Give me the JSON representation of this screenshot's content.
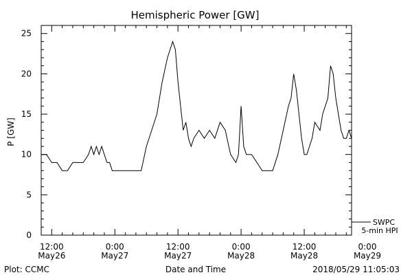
{
  "chart_data": {
    "type": "line",
    "title": "Hemispheric Power [GW]",
    "xlabel": "Date and Time",
    "ylabel": "P [GW]",
    "ylim": [
      0,
      26
    ],
    "xlim_hours": [
      -2,
      57
    ],
    "x_ticks": [
      {
        "hour": 0,
        "time": "12:00",
        "date": "May26"
      },
      {
        "hour": 12,
        "time": "0:00",
        "date": "May27"
      },
      {
        "hour": 24,
        "time": "12:00",
        "date": "May27"
      },
      {
        "hour": 36,
        "time": "0:00",
        "date": "May28"
      },
      {
        "hour": 48,
        "time": "12:00",
        "date": "May28"
      },
      {
        "hour": 60,
        "time": "0:00",
        "date": "May29"
      }
    ],
    "y_ticks": [
      0,
      5,
      10,
      15,
      20,
      25
    ],
    "legend": {
      "line1": "SWPC",
      "line2": "5-min HPI",
      "placement": "right-bottom"
    },
    "footer": {
      "left": "Plot: CCMC",
      "right": "2018/05/29 11:05:03"
    },
    "series": [
      {
        "color": "#000000",
        "x": [
          -2,
          -1,
          0,
          1,
          2,
          3,
          4,
          5,
          6,
          7,
          7.5,
          8,
          8.5,
          9,
          9.5,
          10,
          10.5,
          11,
          11.5,
          12,
          12.5,
          13,
          14,
          15,
          16,
          17,
          18,
          19,
          20,
          21,
          22,
          23,
          23.5,
          24,
          24.5,
          25,
          25.5,
          26,
          26.5,
          27,
          28,
          29,
          30,
          31,
          32,
          33,
          34,
          35,
          35.5,
          36,
          36.5,
          37,
          38,
          39,
          40,
          41,
          42,
          43,
          44,
          45,
          45.5,
          46,
          46.5,
          47,
          47.5,
          48,
          48.5,
          49,
          49.5,
          50,
          51,
          51.5,
          52,
          52.5,
          53,
          53.5,
          54,
          54.5,
          55,
          55.5,
          56,
          56.5,
          57
        ],
        "y": [
          10,
          10,
          9,
          9,
          8,
          8,
          9,
          9,
          9,
          10,
          11,
          10,
          11,
          10,
          11,
          10,
          9,
          9,
          8,
          8,
          8,
          8,
          8,
          8,
          8,
          8,
          11,
          13,
          15,
          19,
          22,
          24,
          23,
          19,
          16,
          13,
          14,
          12,
          11,
          12,
          13,
          12,
          13,
          12,
          14,
          13,
          10,
          9,
          10,
          16,
          11,
          10,
          10,
          9,
          8,
          8,
          8,
          10,
          13,
          16,
          17,
          20,
          18,
          15,
          12,
          10,
          10,
          11,
          12,
          14,
          13,
          15,
          16,
          17,
          21,
          20,
          17,
          15,
          13,
          12,
          12,
          13,
          12
        ]
      }
    ]
  }
}
